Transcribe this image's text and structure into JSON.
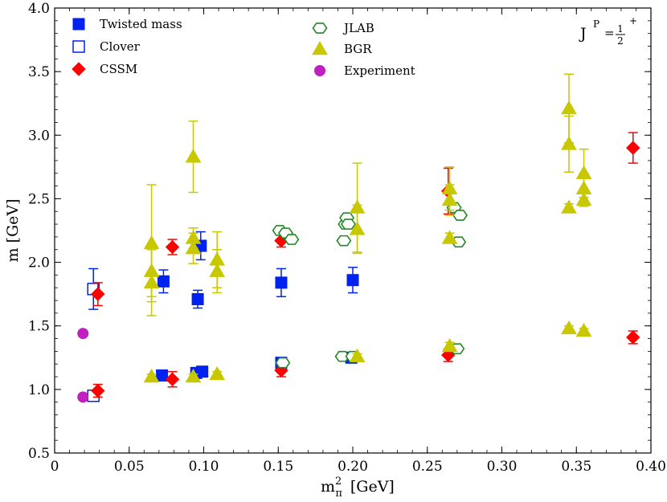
{
  "chart_data": {
    "type": "scatter",
    "title": "",
    "xlabel": "m",
    "xlabel_sub": "π",
    "xlabel_sup": "2",
    "xlabel_unit": "[GeV]",
    "ylabel": "m [GeV]",
    "xlim": [
      0,
      0.4
    ],
    "ylim": [
      0.5,
      4.0
    ],
    "x_ticks": [
      0,
      0.05,
      0.1,
      0.15,
      0.2,
      0.25,
      0.3,
      0.35,
      0.4
    ],
    "x_tick_labels": [
      "0",
      "0.05",
      "0.10",
      "0.15",
      "0.20",
      "0.25",
      "0.30",
      "0.35",
      "0.40"
    ],
    "y_ticks": [
      0.5,
      1.0,
      1.5,
      2.0,
      2.5,
      3.0,
      3.5,
      4.0
    ],
    "y_tick_labels": [
      "0.5",
      "1.0",
      "1.5",
      "2.0",
      "2.5",
      "3.0",
      "3.5",
      "4.0"
    ],
    "grid": false,
    "annotation": {
      "J": "J",
      "P": "P",
      "eq": "=",
      "num": "1",
      "den": "2",
      "sign": "+"
    },
    "series": [
      {
        "name": "Twisted mass",
        "marker": "square-filled",
        "color": "#0022ee",
        "points": [
          {
            "x": 0.072,
            "y": 1.11,
            "err": 0.02
          },
          {
            "x": 0.073,
            "y": 1.85,
            "err": 0.09
          },
          {
            "x": 0.095,
            "y": 1.13,
            "err": 0.02
          },
          {
            "x": 0.096,
            "y": 1.71,
            "err": 0.07
          },
          {
            "x": 0.098,
            "y": 2.13,
            "err": 0.11
          },
          {
            "x": 0.099,
            "y": 1.14,
            "err": 0.02
          },
          {
            "x": 0.152,
            "y": 1.84,
            "err": 0.11
          },
          {
            "x": 0.152,
            "y": 1.21,
            "err": 0.02
          },
          {
            "x": 0.199,
            "y": 1.25,
            "err": 0.02
          },
          {
            "x": 0.2,
            "y": 1.86,
            "err": 0.1
          }
        ]
      },
      {
        "name": "Clover",
        "marker": "square-open",
        "color": "#0022ee",
        "points": [
          {
            "x": 0.026,
            "y": 0.95,
            "err": 0.03
          },
          {
            "x": 0.026,
            "y": 1.79,
            "err": 0.16
          }
        ]
      },
      {
        "name": "CSSM",
        "marker": "diamond",
        "color": "#ff0000",
        "points": [
          {
            "x": 0.029,
            "y": 0.99,
            "err": 0.05
          },
          {
            "x": 0.029,
            "y": 1.75,
            "err": 0.09
          },
          {
            "x": 0.079,
            "y": 1.08,
            "err": 0.06
          },
          {
            "x": 0.079,
            "y": 2.12,
            "err": 0.06
          },
          {
            "x": 0.152,
            "y": 1.15,
            "err": 0.05
          },
          {
            "x": 0.152,
            "y": 2.17,
            "err": 0.05
          },
          {
            "x": 0.264,
            "y": 1.27,
            "err": 0.05
          },
          {
            "x": 0.264,
            "y": 2.56,
            "err": 0.18
          },
          {
            "x": 0.388,
            "y": 1.41,
            "err": 0.05
          },
          {
            "x": 0.388,
            "y": 2.9,
            "err": 0.12
          }
        ]
      },
      {
        "name": "JLAB",
        "marker": "hexagon-open",
        "color": "#228822",
        "points": [
          {
            "x": 0.151,
            "y": 2.25
          },
          {
            "x": 0.155,
            "y": 2.23
          },
          {
            "x": 0.159,
            "y": 2.18
          },
          {
            "x": 0.153,
            "y": 1.21
          },
          {
            "x": 0.193,
            "y": 1.26
          },
          {
            "x": 0.194,
            "y": 2.17
          },
          {
            "x": 0.195,
            "y": 2.3
          },
          {
            "x": 0.196,
            "y": 2.35
          },
          {
            "x": 0.197,
            "y": 2.3
          },
          {
            "x": 0.2,
            "y": 1.26
          },
          {
            "x": 0.268,
            "y": 2.43
          },
          {
            "x": 0.27,
            "y": 1.32
          },
          {
            "x": 0.271,
            "y": 2.16
          },
          {
            "x": 0.272,
            "y": 2.37
          }
        ]
      },
      {
        "name": "BGR",
        "marker": "triangle-filled",
        "color": "#c8c800",
        "points": [
          {
            "x": 0.065,
            "y": 1.1,
            "err": 0.02
          },
          {
            "x": 0.065,
            "y": 1.84,
            "err": 0.26
          },
          {
            "x": 0.065,
            "y": 1.93,
            "err": 0.2
          },
          {
            "x": 0.065,
            "y": 2.15,
            "err": 0.46
          },
          {
            "x": 0.093,
            "y": 1.1,
            "err": 0.02
          },
          {
            "x": 0.093,
            "y": 2.11,
            "err": 0.12
          },
          {
            "x": 0.093,
            "y": 2.19,
            "err": 0.08
          },
          {
            "x": 0.093,
            "y": 2.83,
            "err": 0.28
          },
          {
            "x": 0.109,
            "y": 1.12,
            "err": 0.02
          },
          {
            "x": 0.109,
            "y": 1.93,
            "err": 0.17
          },
          {
            "x": 0.109,
            "y": 2.02,
            "err": 0.22
          },
          {
            "x": 0.203,
            "y": 1.26,
            "err": 0.02
          },
          {
            "x": 0.203,
            "y": 2.26,
            "err": 0.19
          },
          {
            "x": 0.203,
            "y": 2.43,
            "err": 0.35
          },
          {
            "x": 0.265,
            "y": 1.34,
            "err": 0.03
          },
          {
            "x": 0.265,
            "y": 2.19,
            "err": 0.04
          },
          {
            "x": 0.265,
            "y": 2.49,
            "err": 0.12
          },
          {
            "x": 0.265,
            "y": 2.58,
            "err": 0.17
          },
          {
            "x": 0.345,
            "y": 1.48,
            "err": 0.02
          },
          {
            "x": 0.345,
            "y": 2.43,
            "err": 0.03
          },
          {
            "x": 0.345,
            "y": 2.93,
            "err": 0.22
          },
          {
            "x": 0.345,
            "y": 3.21,
            "err": 0.27
          },
          {
            "x": 0.355,
            "y": 1.46,
            "err": 0.02
          },
          {
            "x": 0.355,
            "y": 2.49,
            "err": 0.05
          },
          {
            "x": 0.355,
            "y": 2.58,
            "err": 0.12
          },
          {
            "x": 0.355,
            "y": 2.7,
            "err": 0.19
          }
        ]
      },
      {
        "name": "Experiment",
        "marker": "circle-filled",
        "color": "#c020c0",
        "points": [
          {
            "x": 0.019,
            "y": 0.94
          },
          {
            "x": 0.019,
            "y": 1.44
          }
        ]
      }
    ]
  }
}
